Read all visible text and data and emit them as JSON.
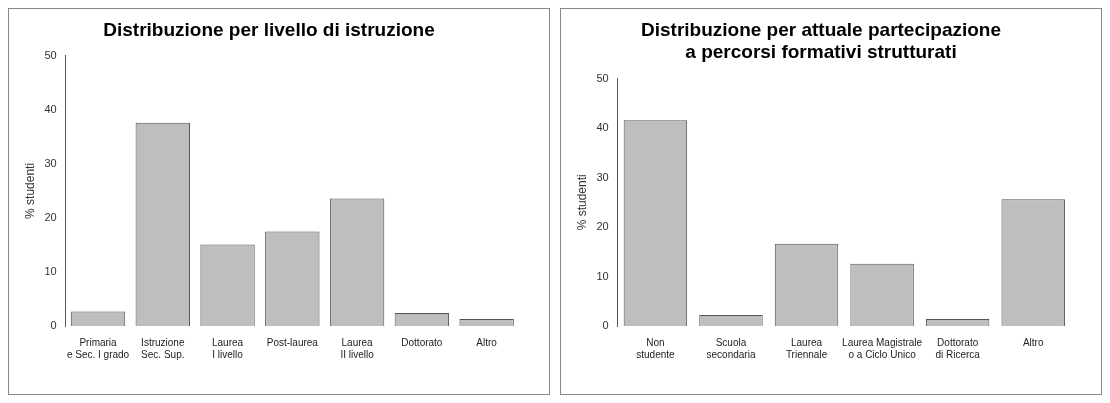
{
  "chart_data": [
    {
      "type": "bar",
      "title": "Distribuzione per livello di istruzione",
      "ylabel": "% studenti",
      "categories": [
        "Primaria\ne Sec. I grado",
        "Istruzione\nSec. Sup.",
        "Laurea\nI livello",
        "Post-laurea",
        "Laurea\nII livello",
        "Dottorato",
        "Altro"
      ],
      "values": [
        2.7,
        37.6,
        15.1,
        17.5,
        23.6,
        2.4,
        1.3
      ],
      "color": "#bebebe",
      "ylim": [
        0,
        50
      ],
      "yticks": [
        0,
        10,
        20,
        30,
        40,
        50
      ],
      "grid": false,
      "legend": false
    },
    {
      "type": "bar",
      "title": "Distribuzione per attuale partecipazione\na percorsi formativi strutturati",
      "ylabel": "% studenti",
      "categories": [
        "Non\nstudente",
        "Scuola\nsecondaria",
        "Laurea\nTriennale",
        "Laurea Magistrale\no a Ciclo Unico",
        "Dottorato\ndi Ricerca",
        "Altro"
      ],
      "values": [
        41.6,
        2.2,
        16.6,
        12.6,
        1.4,
        25.6
      ],
      "color": "#bebebe",
      "ylim": [
        0,
        50
      ],
      "yticks": [
        0,
        10,
        20,
        30,
        40,
        50
      ],
      "grid": false,
      "legend": false
    }
  ]
}
